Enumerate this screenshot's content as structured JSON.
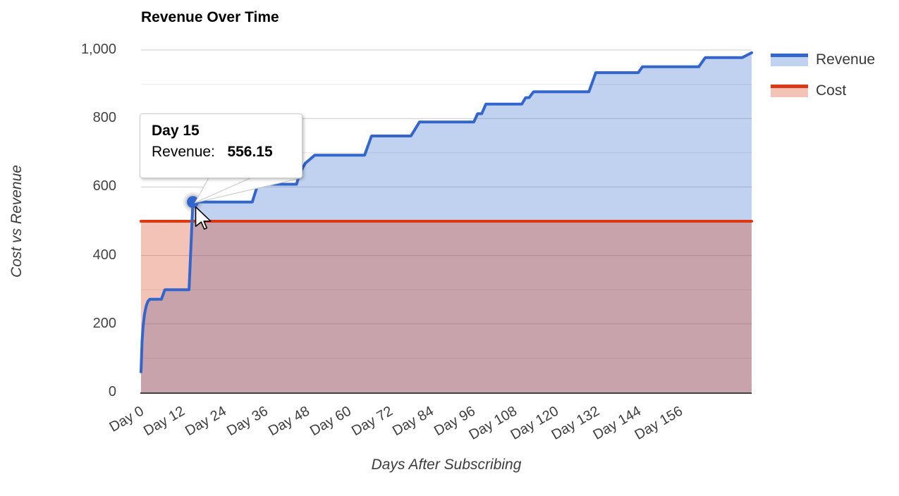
{
  "title": "Revenue Over Time",
  "axes": {
    "y_title": "Cost vs Revenue",
    "x_title": "Days After Subscribing"
  },
  "tooltip": {
    "title": "Day 15",
    "series_label": "Revenue:",
    "value": "556.15"
  },
  "colors": {
    "revenue_line": "#3366cc",
    "revenue_fill": "rgba(51,102,204,0.30)",
    "cost_line": "#dc3912",
    "cost_fill": "rgba(220,57,18,0.30)",
    "gridline_major": "#cccccc",
    "gridline_minor": "#e6e6e6",
    "baseline": "#424242",
    "axis_text": "#444444",
    "tooltip_border": "#cccccc"
  },
  "chart_data": {
    "type": "area",
    "title": "Revenue Over Time",
    "xlabel": "Days After Subscribing",
    "ylabel": "Cost vs Revenue",
    "legend_position": "right",
    "grid": true,
    "x_axis": {
      "max": 176.7,
      "ticks": [
        {
          "day": 0,
          "label": "Day 0"
        },
        {
          "day": 12,
          "label": "Day 12"
        },
        {
          "day": 24,
          "label": "Day 24"
        },
        {
          "day": 36,
          "label": "Day 36"
        },
        {
          "day": 48,
          "label": "Day 48"
        },
        {
          "day": 60,
          "label": "Day 60"
        },
        {
          "day": 72,
          "label": "Day 72"
        },
        {
          "day": 84,
          "label": "Day 84"
        },
        {
          "day": 96,
          "label": "Day 96"
        },
        {
          "day": 108,
          "label": "Day 108"
        },
        {
          "day": 120,
          "label": "Day 120"
        },
        {
          "day": 132,
          "label": "Day 132"
        },
        {
          "day": 144,
          "label": "Day 144"
        },
        {
          "day": 156,
          "label": "Day 156"
        }
      ]
    },
    "y_axis": {
      "max": 1000,
      "ticks": [
        {
          "value": 0,
          "label": "0"
        },
        {
          "value": 200,
          "label": "200"
        },
        {
          "value": 400,
          "label": "400"
        },
        {
          "value": 600,
          "label": "600"
        },
        {
          "value": 800,
          "label": "800"
        },
        {
          "value": 1000,
          "label": "1,000"
        }
      ],
      "minor_gridlines": [
        100,
        300,
        500,
        700,
        900
      ]
    },
    "series": [
      {
        "name": "Revenue",
        "line_color": "#3366cc",
        "fill_color": "rgba(51,102,204,0.30)",
        "points": [
          [
            0,
            60
          ],
          [
            0.3,
            150
          ],
          [
            0.6,
            192
          ],
          [
            1,
            228
          ],
          [
            1.5,
            253
          ],
          [
            2,
            266
          ],
          [
            2.5,
            272
          ],
          [
            5.9,
            272
          ],
          [
            6.9,
            300
          ],
          [
            13.9,
            300
          ],
          [
            14.5,
            440
          ],
          [
            15,
            556.15
          ],
          [
            32.2,
            556.15
          ],
          [
            33.8,
            608
          ],
          [
            45,
            608
          ],
          [
            46,
            641
          ],
          [
            47.5,
            669
          ],
          [
            50.3,
            693
          ],
          [
            64.7,
            693
          ],
          [
            66.7,
            749
          ],
          [
            78.1,
            749
          ],
          [
            80.6,
            790
          ],
          [
            96.3,
            790
          ],
          [
            97.4,
            814
          ],
          [
            98.6,
            814
          ],
          [
            99.8,
            842
          ],
          [
            110.2,
            842
          ],
          [
            111.3,
            861
          ],
          [
            112.3,
            861
          ],
          [
            113.6,
            878
          ],
          [
            129.6,
            878
          ],
          [
            131.6,
            934
          ],
          [
            143.9,
            934
          ],
          [
            145.1,
            951
          ],
          [
            161.4,
            951
          ],
          [
            163.3,
            978
          ],
          [
            174,
            978
          ],
          [
            176.7,
            992
          ]
        ]
      },
      {
        "name": "Cost",
        "line_color": "#dc3912",
        "fill_color": "rgba(220,57,18,0.30)",
        "points": [
          [
            0,
            500
          ],
          [
            176.7,
            500
          ]
        ]
      }
    ],
    "highlighted_point": {
      "series": "Revenue",
      "day": 15,
      "value": 556.15
    }
  }
}
